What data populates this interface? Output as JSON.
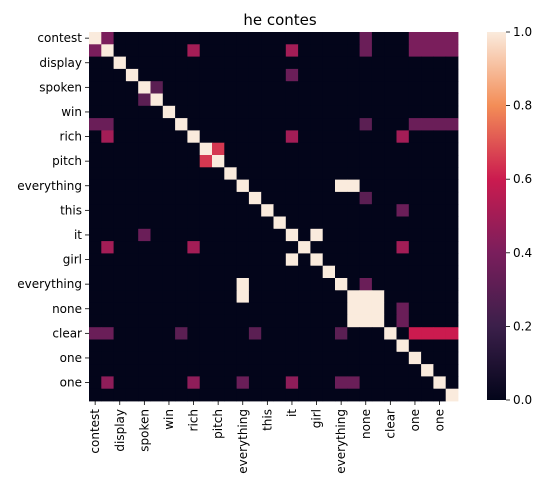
{
  "chart_data": {
    "type": "heatmap",
    "title": "he contes",
    "tokens": [
      "contest",
      "",
      "display",
      "",
      "spoken",
      "",
      "win",
      "",
      "rich",
      "",
      "pitch",
      "",
      "everything",
      "",
      "this",
      "",
      "it",
      "",
      "girl",
      "",
      "everything",
      "",
      "none",
      "",
      "clear",
      "",
      "one",
      "",
      "one",
      ""
    ],
    "x_tick_labels": [
      "contest",
      "display",
      "spoken",
      "win",
      "rich",
      "pitch",
      "everything",
      "this",
      "it",
      "girl",
      "everything",
      "none",
      "clear",
      "one",
      "one"
    ],
    "y_tick_labels": [
      "contest",
      "display",
      "spoken",
      "win",
      "rich",
      "pitch",
      "everything",
      "this",
      "it",
      "girl",
      "everything",
      "none",
      "clear",
      "one",
      "one"
    ],
    "matrix": [
      [
        1,
        0.4,
        0,
        0,
        0,
        0,
        0,
        0,
        0,
        0,
        0,
        0,
        0,
        0,
        0,
        0,
        0,
        0,
        0,
        0,
        0,
        0,
        0.35,
        0,
        0,
        0,
        0.4,
        0.4,
        0.4,
        0.4
      ],
      [
        0.4,
        1,
        0,
        0,
        0,
        0,
        0,
        0,
        0.5,
        0,
        0,
        0,
        0,
        0,
        0,
        0,
        0.5,
        0,
        0,
        0,
        0,
        0,
        0.35,
        0,
        0,
        0,
        0.4,
        0.4,
        0.4,
        0.4
      ],
      [
        0,
        0,
        1,
        0,
        0,
        0,
        0,
        0,
        0,
        0,
        0,
        0,
        0,
        0,
        0,
        0,
        0,
        0,
        0,
        0,
        0,
        0,
        0,
        0,
        0,
        0,
        0,
        0,
        0,
        0
      ],
      [
        0,
        0,
        0,
        1,
        0,
        0,
        0,
        0,
        0,
        0,
        0,
        0,
        0,
        0,
        0,
        0,
        0.35,
        0,
        0,
        0,
        0,
        0,
        0,
        0,
        0,
        0,
        0,
        0,
        0,
        0
      ],
      [
        0,
        0,
        0,
        0,
        1,
        0.3,
        0,
        0,
        0,
        0,
        0,
        0,
        0,
        0,
        0,
        0,
        0,
        0,
        0,
        0,
        0,
        0,
        0,
        0,
        0,
        0,
        0,
        0,
        0,
        0
      ],
      [
        0,
        0,
        0,
        0,
        0.3,
        1,
        0,
        0,
        0,
        0,
        0,
        0,
        0,
        0,
        0,
        0,
        0,
        0,
        0,
        0,
        0,
        0,
        0,
        0,
        0,
        0,
        0,
        0,
        0,
        0
      ],
      [
        0,
        0,
        0,
        0,
        0,
        0,
        1,
        0,
        0,
        0,
        0,
        0,
        0,
        0,
        0,
        0,
        0,
        0,
        0,
        0,
        0,
        0,
        0,
        0,
        0,
        0,
        0,
        0,
        0,
        0
      ],
      [
        0.35,
        0.35,
        0,
        0,
        0,
        0,
        0,
        1,
        0,
        0,
        0,
        0,
        0,
        0,
        0,
        0,
        0,
        0,
        0,
        0,
        0,
        0,
        0.3,
        0,
        0,
        0,
        0.35,
        0.35,
        0.35,
        0.35
      ],
      [
        0,
        0.5,
        0,
        0,
        0,
        0,
        0,
        0,
        1,
        0,
        0,
        0,
        0,
        0,
        0,
        0,
        0.5,
        0,
        0,
        0,
        0,
        0,
        0,
        0,
        0,
        0.5,
        0,
        0,
        0,
        0
      ],
      [
        0,
        0,
        0,
        0,
        0,
        0,
        0,
        0,
        0,
        1,
        0.65,
        0,
        0,
        0,
        0,
        0,
        0,
        0,
        0,
        0,
        0,
        0,
        0,
        0,
        0,
        0,
        0,
        0,
        0,
        0
      ],
      [
        0,
        0,
        0,
        0,
        0,
        0,
        0,
        0,
        0,
        0.65,
        1,
        0,
        0,
        0,
        0,
        0,
        0,
        0,
        0,
        0,
        0,
        0,
        0,
        0,
        0,
        0,
        0,
        0,
        0,
        0
      ],
      [
        0,
        0,
        0,
        0,
        0,
        0,
        0,
        0,
        0,
        0,
        0,
        1,
        0,
        0,
        0,
        0,
        0,
        0,
        0,
        0,
        0,
        0,
        0,
        0,
        0,
        0,
        0,
        0,
        0,
        0
      ],
      [
        0,
        0,
        0,
        0,
        0,
        0,
        0,
        0,
        0,
        0,
        0,
        0,
        1,
        0,
        0,
        0,
        0,
        0,
        0,
        0,
        1,
        1,
        0,
        0,
        0,
        0,
        0,
        0,
        0,
        0
      ],
      [
        0,
        0,
        0,
        0,
        0,
        0,
        0,
        0,
        0,
        0,
        0,
        0,
        0,
        1,
        0,
        0,
        0,
        0,
        0,
        0,
        0,
        0,
        0.3,
        0,
        0,
        0,
        0,
        0,
        0,
        0
      ],
      [
        0,
        0,
        0,
        0,
        0,
        0,
        0,
        0,
        0,
        0,
        0,
        0,
        0,
        0,
        1,
        0,
        0,
        0,
        0,
        0,
        0,
        0,
        0,
        0,
        0,
        0.35,
        0,
        0,
        0,
        0
      ],
      [
        0,
        0,
        0,
        0,
        0,
        0,
        0,
        0,
        0,
        0,
        0,
        0,
        0,
        0,
        0,
        1,
        0,
        0,
        0,
        0,
        0,
        0,
        0,
        0,
        0,
        0,
        0,
        0,
        0,
        0
      ],
      [
        0,
        0,
        0,
        0,
        0.35,
        0,
        0,
        0,
        0,
        0,
        0,
        0,
        0,
        0,
        0,
        0,
        1,
        0,
        1,
        0,
        0,
        0,
        0,
        0,
        0,
        0,
        0,
        0,
        0,
        0
      ],
      [
        0,
        0.5,
        0,
        0,
        0,
        0,
        0,
        0,
        0.5,
        0,
        0,
        0,
        0,
        0,
        0,
        0,
        0,
        1,
        0,
        0,
        0,
        0,
        0,
        0,
        0,
        0.5,
        0,
        0,
        0,
        0
      ],
      [
        0,
        0,
        0,
        0,
        0,
        0,
        0,
        0,
        0,
        0,
        0,
        0,
        0,
        0,
        0,
        0,
        1,
        0,
        1,
        0,
        0,
        0,
        0,
        0,
        0,
        0,
        0,
        0,
        0,
        0
      ],
      [
        0,
        0,
        0,
        0,
        0,
        0,
        0,
        0,
        0,
        0,
        0,
        0,
        0,
        0,
        0,
        0,
        0,
        0,
        0,
        1,
        0,
        0,
        0,
        0,
        0,
        0,
        0,
        0,
        0,
        0
      ],
      [
        0,
        0,
        0,
        0,
        0,
        0,
        0,
        0,
        0,
        0,
        0,
        0,
        1,
        0,
        0,
        0,
        0,
        0,
        0,
        0,
        1,
        0,
        0.35,
        0,
        0,
        0,
        0,
        0,
        0,
        0
      ],
      [
        0,
        0,
        0,
        0,
        0,
        0,
        0,
        0,
        0,
        0,
        0,
        0,
        1,
        0,
        0,
        0,
        0,
        0,
        0,
        0,
        0,
        1,
        1,
        1,
        0,
        0,
        0,
        0,
        0,
        0
      ],
      [
        0,
        0,
        0,
        0,
        0,
        0,
        0,
        0,
        0,
        0,
        0,
        0,
        0,
        0,
        0,
        0,
        0,
        0,
        0,
        0,
        0,
        1,
        1,
        1,
        0,
        0.35,
        0,
        0,
        0,
        0
      ],
      [
        0,
        0,
        0,
        0,
        0,
        0,
        0,
        0,
        0,
        0,
        0,
        0,
        0,
        0,
        0,
        0,
        0,
        0,
        0,
        0,
        0,
        1,
        1,
        1,
        0,
        0.35,
        0,
        0,
        0,
        0
      ],
      [
        0.35,
        0.35,
        0,
        0,
        0,
        0,
        0,
        0.3,
        0,
        0,
        0,
        0,
        0,
        0.3,
        0,
        0,
        0,
        0,
        0,
        0,
        0.3,
        0,
        0,
        0,
        1,
        0,
        0.6,
        0.6,
        0.6,
        0.6
      ],
      [
        0,
        0,
        0,
        0,
        0,
        0,
        0,
        0,
        0,
        0,
        0,
        0,
        0,
        0,
        0,
        0,
        0,
        0,
        0,
        0,
        0,
        0,
        0,
        0,
        0,
        1,
        0,
        0,
        0,
        0
      ],
      [
        0,
        0,
        0,
        0,
        0,
        0,
        0,
        0,
        0,
        0,
        0,
        0,
        0,
        0,
        0,
        0,
        0,
        0,
        0,
        0,
        0,
        0,
        0,
        0,
        0,
        0,
        1,
        0,
        0,
        0
      ],
      [
        0,
        0,
        0,
        0,
        0,
        0,
        0,
        0,
        0,
        0,
        0,
        0,
        0,
        0,
        0,
        0,
        0,
        0,
        0,
        0,
        0,
        0,
        0,
        0,
        0,
        0,
        0,
        1,
        0,
        0
      ],
      [
        0,
        0.45,
        0,
        0,
        0,
        0,
        0,
        0,
        0.45,
        0,
        0,
        0,
        0.35,
        0,
        0,
        0,
        0.45,
        0,
        0,
        0,
        0.35,
        0.35,
        0,
        0,
        0,
        0,
        0,
        0,
        1,
        0
      ],
      [
        0,
        0,
        0,
        0,
        0,
        0,
        0,
        0,
        0,
        0,
        0,
        0,
        0,
        0,
        0,
        0,
        0,
        0,
        0,
        0,
        0,
        0,
        0,
        0,
        0,
        0,
        0,
        0,
        0,
        1
      ]
    ],
    "vmin": 0,
    "vmax": 1,
    "colorbar_ticks": [
      "0.0",
      "0.2",
      "0.4",
      "0.6",
      "0.8",
      "1.0"
    ],
    "colormap": "rocket",
    "grid": false,
    "legend": "right colorbar"
  }
}
